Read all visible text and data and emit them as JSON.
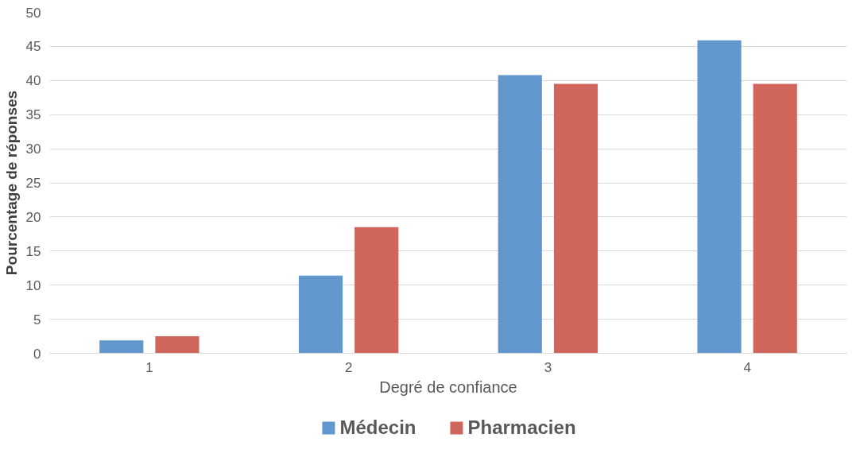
{
  "chart_data": {
    "type": "bar",
    "xlabel": "Degré de confiance",
    "ylabel": "Pourcentage de réponses",
    "categories": [
      "1",
      "2",
      "3",
      "4"
    ],
    "series": [
      {
        "name": "Médecin",
        "color": "#6197cc",
        "values": [
          1.9,
          11.4,
          40.8,
          45.9
        ]
      },
      {
        "name": "Pharmacien",
        "color": "#d0655b",
        "values": [
          2.5,
          18.5,
          39.5,
          39.5
        ]
      }
    ],
    "ylim": [
      0,
      50
    ],
    "yticks": [
      0,
      5,
      10,
      15,
      20,
      25,
      30,
      35,
      40,
      45,
      50
    ],
    "grid": "y",
    "legend": "bottom"
  }
}
